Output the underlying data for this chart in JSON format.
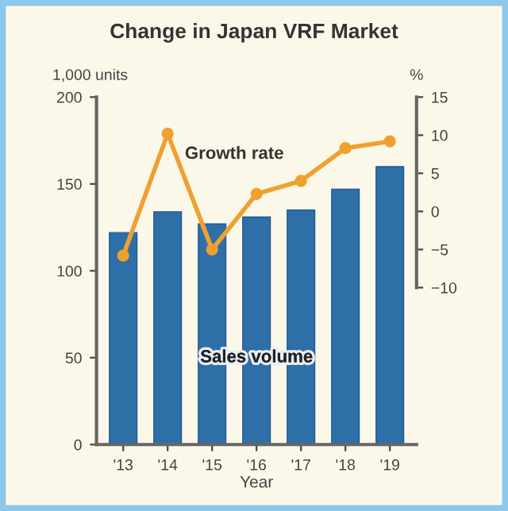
{
  "chart_data": {
    "type": "bar",
    "title": "Change in Japan VRF Market",
    "xlabel": "Year",
    "ylabel": "1,000 units",
    "y2label": "%",
    "categories": [
      "'13",
      "'14",
      "'15",
      "'16",
      "'17",
      "'18",
      "'19"
    ],
    "series": [
      {
        "name": "Sales volume",
        "color": "#2f6fa8",
        "values": [
          122,
          134,
          127,
          131,
          135,
          147,
          160
        ]
      },
      {
        "name": "Growth rate",
        "type": "line",
        "axis": "y2",
        "color": "#f0a030",
        "marker": "circle",
        "values": [
          -5.8,
          10.2,
          -5,
          2.3,
          4,
          8.3,
          9.2
        ]
      }
    ],
    "ylim": [
      0,
      200
    ],
    "yticks": [
      0,
      50,
      100,
      150,
      200
    ],
    "y2lim": [
      -30.6,
      15
    ],
    "y2ticks": [
      -10,
      -5,
      0,
      5,
      10,
      15
    ],
    "grid": false,
    "legend": false
  }
}
